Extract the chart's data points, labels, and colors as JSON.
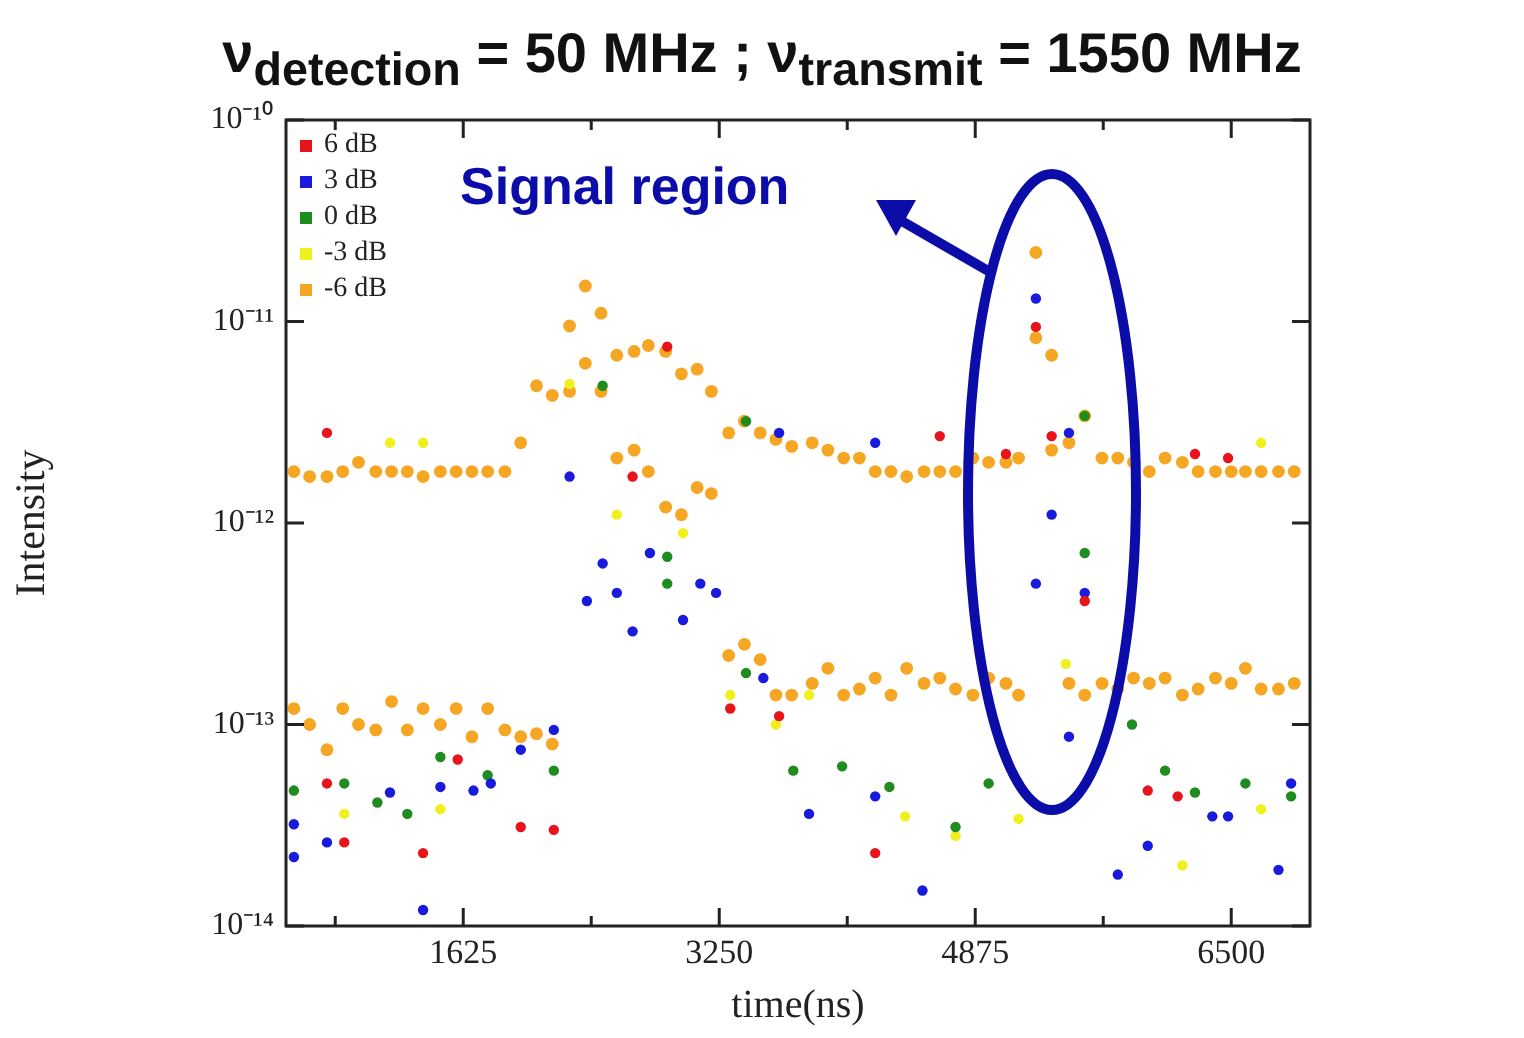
{
  "chart_data": {
    "type": "scatter",
    "title": "ν$_{detection}$ = 50 MHz ; ν$_{transmit}$ = 1550 MHz",
    "xlabel": "time(ns)",
    "ylabel": "Intensity",
    "annotations": [
      "Signal region"
    ],
    "log": "y",
    "grid": false,
    "legend": "top left",
    "marker": "circle",
    "xlim": [
      500,
      7000
    ],
    "xticks": [
      {
        "value": 812.5,
        "label": null
      },
      1625,
      {
        "value": 2437.5,
        "label": null
      },
      3250,
      {
        "value": 4062.5,
        "label": null
      },
      4875,
      {
        "value": 5687.5,
        "label": null
      },
      6500
    ],
    "ylim": [
      1e-14,
      1e-10
    ],
    "yticks": [
      {
        "value": 1e-14,
        "label": "10⁻¹⁴"
      },
      {
        "value": 1e-13,
        "label": "10⁻¹³"
      },
      {
        "value": 1e-12,
        "label": "10⁻¹²"
      },
      {
        "value": 1e-11,
        "label": "10⁻¹¹"
      },
      {
        "value": 1e-10,
        "label": "10⁻¹⁰"
      }
    ],
    "series": [
      {
        "name": "6 dB",
        "color": "#e8141c",
        "x": [
          760,
          870,
          760,
          1370,
          1990,
          2200,
          2700,
          2920,
          3630,
          3320,
          1590,
          4240,
          4650,
          5070,
          5360,
          5570,
          5260,
          6270,
          6480,
          6160,
          5970
        ],
        "values": [
          2.8e-12,
          2.6e-14,
          5.1e-14,
          2.3e-14,
          3.1e-14,
          3e-14,
          1.7e-12,
          7.5e-12,
          1.1e-13,
          1.2e-13,
          6.7e-14,
          2.3e-14,
          2.7e-12,
          2.2e-12,
          2.7e-12,
          4.1e-13,
          9.4e-12,
          2.2e-12,
          2.1e-12,
          4.4e-14,
          4.7e-14
        ]
      },
      {
        "name": "3 dB",
        "color": "#1a1adc",
        "x": [
          550,
          550,
          760,
          1160,
          1370,
          1480,
          1690,
          1800,
          1990,
          2200,
          2300,
          2410,
          2510,
          2600,
          2700,
          2810,
          3020,
          3130,
          3230,
          3630,
          3530,
          3820,
          4240,
          4540,
          5260,
          5360,
          5470,
          5570,
          5470,
          5780,
          5970,
          6380,
          6480,
          6800,
          6880,
          4240,
          5260
        ],
        "values": [
          3.2e-14,
          2.2e-14,
          2.6e-14,
          4.6e-14,
          1.2e-14,
          4.9e-14,
          4.7e-14,
          5.1e-14,
          7.5e-14,
          9.4e-14,
          1.7e-12,
          4.1e-13,
          6.3e-13,
          4.5e-13,
          2.9e-13,
          7.1e-13,
          3.3e-13,
          5e-13,
          4.5e-13,
          2.8e-12,
          1.7e-13,
          3.6e-14,
          4.4e-14,
          1.5e-14,
          5e-13,
          1.1e-12,
          2.8e-12,
          4.5e-13,
          8.7e-14,
          1.8e-14,
          2.5e-14,
          3.5e-14,
          3.5e-14,
          1.9e-14,
          5.1e-14,
          2.5e-12,
          1.3e-11
        ]
      },
      {
        "name": "0 dB",
        "color": "#1e8c1e",
        "x": [
          550,
          870,
          1080,
          1270,
          1480,
          1780,
          2200,
          2920,
          2920,
          3420,
          3720,
          2510,
          3420,
          4030,
          4330,
          4750,
          4960,
          5570,
          5570,
          5870,
          6080,
          6270,
          6590,
          6880
        ],
        "values": [
          4.7e-14,
          5.1e-14,
          4.1e-14,
          3.6e-14,
          6.9e-14,
          5.6e-14,
          5.9e-14,
          6.8e-13,
          5e-13,
          1.8e-13,
          5.9e-14,
          4.8e-12,
          3.2e-12,
          6.2e-14,
          4.9e-14,
          3.1e-14,
          5.1e-14,
          3.4e-12,
          7.1e-13,
          1e-13,
          5.9e-14,
          4.6e-14,
          5.1e-14,
          4.4e-14
        ]
      },
      {
        "name": "-3 dB",
        "color": "#f0f01e",
        "x": [
          870,
          1480,
          1160,
          1370,
          2600,
          3020,
          3320,
          3610,
          2300,
          3820,
          4430,
          4750,
          5150,
          6190,
          6690,
          6690,
          5450
        ],
        "values": [
          3.6e-14,
          3.8e-14,
          2.5e-12,
          2.5e-12,
          1.1e-12,
          8.9e-13,
          1.4e-13,
          1e-13,
          4.9e-12,
          1.4e-13,
          3.5e-14,
          2.8e-14,
          3.4e-14,
          2e-14,
          3.8e-14,
          2.5e-12,
          2e-13
        ]
      },
      {
        "name": "-6 dB",
        "color": "#f5a623",
        "x": [
          550,
          550,
          650,
          650,
          760,
          760,
          860,
          860,
          960,
          960,
          1070,
          1070,
          1170,
          1170,
          1270,
          1270,
          1370,
          1370,
          1480,
          1480,
          1580,
          1580,
          1680,
          1680,
          1780,
          1780,
          1890,
          1890,
          1990,
          1990,
          2090,
          2090,
          2190,
          2190,
          2300,
          2300,
          2400,
          2400,
          2500,
          2500,
          2600,
          2600,
          2710,
          2710,
          2800,
          2800,
          2910,
          2910,
          3010,
          3010,
          3110,
          3110,
          3200,
          3200,
          3310,
          3310,
          3410,
          3410,
          3510,
          3510,
          3610,
          3610,
          3710,
          3710,
          3840,
          3840,
          3940,
          3940,
          4040,
          4040,
          4140,
          4140,
          4240,
          4240,
          4340,
          4340,
          4440,
          4440,
          4550,
          4550,
          4650,
          4650,
          4750,
          4750,
          4860,
          4860,
          4960,
          4960,
          5070,
          5070,
          5150,
          5150,
          5260,
          5260,
          5360,
          5360,
          5470,
          5470,
          5570,
          5570,
          5680,
          5680,
          5780,
          5780,
          5880,
          5880,
          5980,
          5980,
          6080,
          6080,
          6190,
          6190,
          6290,
          6290,
          6400,
          6400,
          6500,
          6500,
          6590,
          6590,
          6690,
          6690,
          6800,
          6800,
          6900,
          6900
        ],
        "values": [
          1.8e-12,
          1.2e-13,
          1.7e-12,
          1e-13,
          1.7e-12,
          7.5e-14,
          1.8e-12,
          1.2e-13,
          2e-12,
          1e-13,
          1.8e-12,
          9.4e-14,
          1.8e-12,
          1.3e-13,
          1.8e-12,
          9.4e-14,
          1.7e-12,
          1.2e-13,
          1.8e-12,
          1e-13,
          1.8e-12,
          1.2e-13,
          1.8e-12,
          8.7e-14,
          1.8e-12,
          1.2e-13,
          1.8e-12,
          9.4e-14,
          2.5e-12,
          8.7e-14,
          4.8e-12,
          9e-14,
          4.3e-12,
          8e-14,
          9.5e-12,
          4.5e-12,
          1.5e-11,
          6.2e-12,
          1.1e-11,
          4.5e-12,
          6.8e-12,
          2.1e-12,
          7.1e-12,
          2.3e-12,
          7.6e-12,
          1.8e-12,
          7.1e-12,
          1.2e-12,
          5.5e-12,
          1.1e-12,
          5.8e-12,
          1.5e-12,
          4.5e-12,
          1.4e-12,
          2.8e-12,
          2.2e-13,
          3.2e-12,
          2.5e-13,
          2.8e-12,
          2.1e-13,
          2.6e-12,
          1.4e-13,
          2.4e-12,
          1.4e-13,
          2.5e-12,
          1.6e-13,
          2.3e-12,
          1.9e-13,
          2.1e-12,
          1.4e-13,
          2.1e-12,
          1.5e-13,
          1.8e-12,
          1.7e-13,
          1.8e-12,
          1.4e-13,
          1.7e-12,
          1.9e-13,
          1.8e-12,
          1.6e-13,
          1.8e-12,
          1.7e-13,
          1.8e-12,
          1.5e-13,
          2.1e-12,
          1.4e-13,
          2e-12,
          1.7e-13,
          2e-12,
          1.6e-13,
          2.1e-12,
          1.4e-13,
          2.2e-11,
          8.3e-12,
          6.8e-12,
          2.3e-12,
          2.5e-12,
          1.6e-13,
          3.4e-12,
          1.4e-13,
          2.1e-12,
          1.6e-13,
          2.1e-12,
          1.5e-13,
          2e-12,
          1.7e-13,
          1.8e-12,
          1.6e-13,
          2.1e-12,
          1.7e-13,
          2e-12,
          1.4e-13,
          1.8e-12,
          1.5e-13,
          1.8e-12,
          1.7e-13,
          1.8e-12,
          1.6e-13,
          1.8e-12,
          1.9e-13,
          1.8e-12,
          1.5e-13,
          1.8e-12,
          1.5e-13,
          1.8e-12,
          1.6e-13
        ]
      }
    ]
  }
}
